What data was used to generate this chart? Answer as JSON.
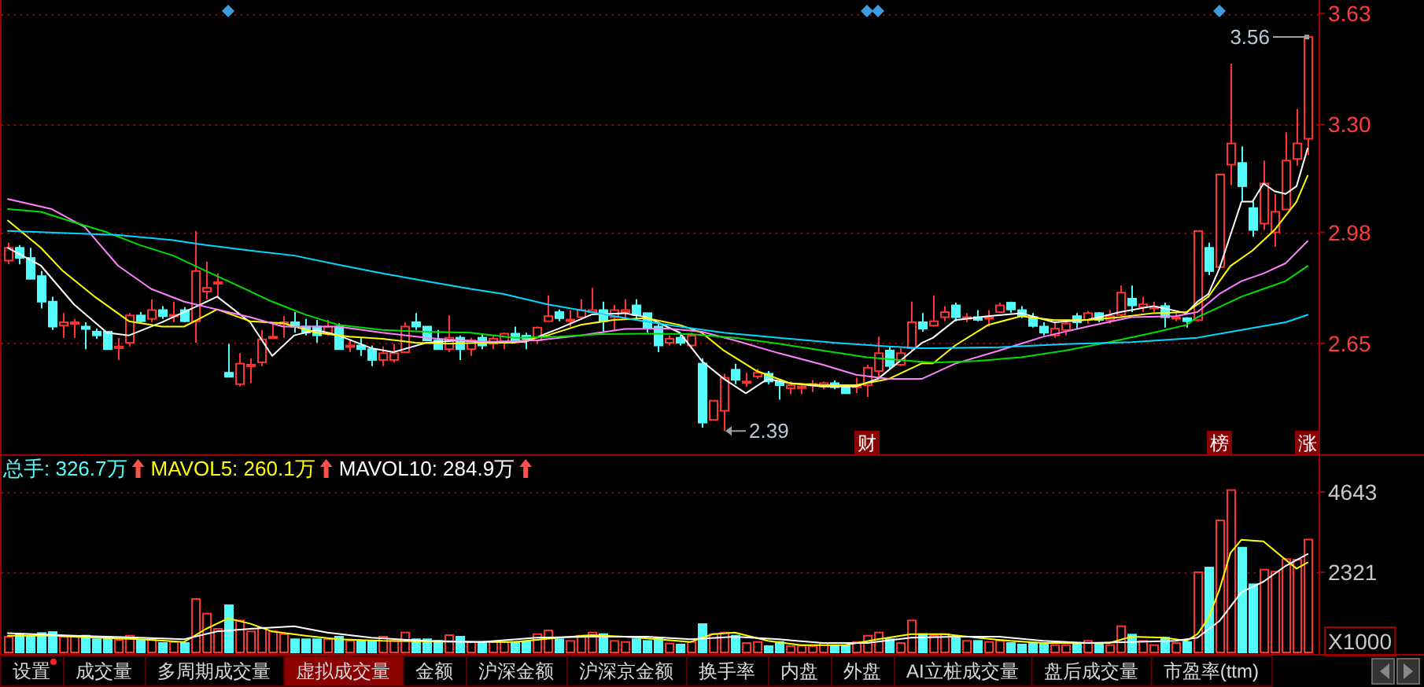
{
  "chart_data": [
    {
      "type": "candlestick",
      "categories": [
        null,
        null,
        null,
        null,
        null,
        null,
        null,
        null,
        null,
        null,
        null,
        null,
        null,
        null,
        null,
        null,
        null,
        null,
        null,
        null,
        null,
        null,
        null,
        null,
        null,
        null,
        null,
        null,
        null,
        null,
        null,
        null,
        null,
        null,
        null,
        null,
        null,
        null,
        null,
        null,
        null,
        null,
        null,
        null,
        null,
        null,
        null,
        null,
        null,
        null,
        null,
        null,
        null,
        null,
        null,
        null,
        null,
        null,
        null,
        null,
        null,
        null,
        null,
        null,
        null,
        null,
        null,
        null,
        null,
        null,
        null,
        null,
        null,
        null,
        null,
        null,
        null,
        null,
        null,
        null,
        null,
        null,
        null,
        null,
        null,
        null,
        null,
        null,
        null,
        null,
        null,
        null,
        null,
        null,
        null,
        null,
        null,
        null,
        null,
        null,
        null,
        null,
        null,
        null,
        null,
        null,
        null,
        null,
        null,
        null,
        null,
        null,
        null,
        null,
        null,
        null,
        null,
        null,
        null
      ],
      "ohlc": [
        [
          2.896,
          2.949,
          2.885,
          2.934
        ],
        [
          2.934,
          2.942,
          2.885,
          2.904
        ],
        [
          2.904,
          2.934,
          2.842,
          2.842
        ],
        [
          2.85,
          2.865,
          2.754,
          2.774
        ],
        [
          2.774,
          2.789,
          2.69,
          2.7
        ],
        [
          2.703,
          2.74,
          2.667,
          2.713
        ],
        [
          2.711,
          2.723,
          2.667,
          2.713
        ],
        [
          2.7,
          2.713,
          2.633,
          2.693
        ],
        [
          2.685,
          2.694,
          2.664,
          2.674
        ],
        [
          2.685,
          2.687,
          2.633,
          2.633
        ],
        [
          2.636,
          2.667,
          2.601,
          2.641
        ],
        [
          2.652,
          2.74,
          2.641,
          2.733
        ],
        [
          2.733,
          2.743,
          2.713,
          2.716
        ],
        [
          2.723,
          2.781,
          2.713,
          2.749
        ],
        [
          2.749,
          2.761,
          2.723,
          2.731
        ],
        [
          2.733,
          2.774,
          2.713,
          2.735
        ],
        [
          2.749,
          2.758,
          2.713,
          2.716
        ],
        [
          2.716,
          2.984,
          2.652,
          2.865
        ],
        [
          2.804,
          2.893,
          2.781,
          2.815
        ],
        [
          2.83,
          2.858,
          2.786,
          2.832
        ],
        [
          2.563,
          2.648,
          2.551,
          2.551
        ],
        [
          2.529,
          2.621,
          2.522,
          2.59
        ],
        [
          2.583,
          2.606,
          2.532,
          2.587
        ],
        [
          2.594,
          2.69,
          2.583,
          2.662
        ],
        [
          2.667,
          2.713,
          2.667,
          2.67
        ],
        [
          2.71,
          2.731,
          2.667,
          2.713
        ],
        [
          2.713,
          2.743,
          2.682,
          2.7
        ],
        [
          2.7,
          2.723,
          2.674,
          2.682
        ],
        [
          2.7,
          2.72,
          2.652,
          2.674
        ],
        [
          2.682,
          2.72,
          2.674,
          2.7
        ],
        [
          2.7,
          2.71,
          2.633,
          2.633
        ],
        [
          2.643,
          2.659,
          2.624,
          2.644
        ],
        [
          2.644,
          2.667,
          2.613,
          2.633
        ],
        [
          2.633,
          2.644,
          2.583,
          2.601
        ],
        [
          2.601,
          2.641,
          2.583,
          2.621
        ],
        [
          2.601,
          2.648,
          2.594,
          2.621
        ],
        [
          2.624,
          2.713,
          2.624,
          2.7
        ],
        [
          2.713,
          2.74,
          2.69,
          2.7
        ],
        [
          2.7,
          2.7,
          2.659,
          2.659
        ],
        [
          2.659,
          2.69,
          2.633,
          2.633
        ],
        [
          2.633,
          2.733,
          2.624,
          2.667
        ],
        [
          2.667,
          2.674,
          2.601,
          2.633
        ],
        [
          2.633,
          2.667,
          2.613,
          2.659
        ],
        [
          2.667,
          2.679,
          2.633,
          2.644
        ],
        [
          2.649,
          2.674,
          2.633,
          2.664
        ],
        [
          2.655,
          2.682,
          2.633,
          2.679
        ],
        [
          2.679,
          2.7,
          2.652,
          2.659
        ],
        [
          2.673,
          2.682,
          2.633,
          2.664
        ],
        [
          2.659,
          2.7,
          2.648,
          2.697
        ],
        [
          2.716,
          2.792,
          2.716,
          2.731
        ],
        [
          2.743,
          2.751,
          2.716,
          2.725
        ],
        [
          2.719,
          2.749,
          2.7,
          2.721
        ],
        [
          2.728,
          2.781,
          2.72,
          2.749
        ],
        [
          2.743,
          2.815,
          2.743,
          2.749
        ],
        [
          2.749,
          2.774,
          2.682,
          2.716
        ],
        [
          2.728,
          2.765,
          2.69,
          2.749
        ],
        [
          2.743,
          2.781,
          2.72,
          2.749
        ],
        [
          2.763,
          2.781,
          2.72,
          2.734
        ],
        [
          2.74,
          2.74,
          2.682,
          2.697
        ],
        [
          2.7,
          2.713,
          2.624,
          2.644
        ],
        [
          2.652,
          2.674,
          2.644,
          2.664
        ],
        [
          2.667,
          2.679,
          2.644,
          2.652
        ],
        [
          2.644,
          2.682,
          2.633,
          2.673
        ],
        [
          2.59,
          2.606,
          2.4,
          2.415
        ],
        [
          2.423,
          2.48,
          2.423,
          2.48
        ],
        [
          2.45,
          2.56,
          2.39,
          2.548
        ],
        [
          2.572,
          2.59,
          2.529,
          2.542
        ],
        [
          2.535,
          2.563,
          2.522,
          2.537
        ],
        [
          2.552,
          2.575,
          2.545,
          2.563
        ],
        [
          2.56,
          2.568,
          2.529,
          2.537
        ],
        [
          2.537,
          2.545,
          2.483,
          2.526
        ],
        [
          2.517,
          2.537,
          2.499,
          2.526
        ],
        [
          2.52,
          2.532,
          2.499,
          2.522
        ],
        [
          2.529,
          2.541,
          2.506,
          2.53
        ],
        [
          2.522,
          2.537,
          2.514,
          2.532
        ],
        [
          2.532,
          2.54,
          2.514,
          2.52
        ],
        [
          2.52,
          2.526,
          2.502,
          2.502
        ],
        [
          2.52,
          2.548,
          2.502,
          2.526
        ],
        [
          2.526,
          2.587,
          2.491,
          2.578
        ],
        [
          2.568,
          2.67,
          2.548,
          2.621
        ],
        [
          2.629,
          2.639,
          2.575,
          2.583
        ],
        [
          2.587,
          2.636,
          2.583,
          2.621
        ],
        [
          2.636,
          2.774,
          2.629,
          2.713
        ],
        [
          2.713,
          2.74,
          2.685,
          2.694
        ],
        [
          2.703,
          2.792,
          2.7,
          2.716
        ],
        [
          2.728,
          2.761,
          2.716,
          2.743
        ],
        [
          2.763,
          2.771,
          2.716,
          2.728
        ],
        [
          2.727,
          2.74,
          2.713,
          2.728
        ],
        [
          2.728,
          2.749,
          2.716,
          2.72
        ],
        [
          2.726,
          2.749,
          2.7,
          2.728
        ],
        [
          2.743,
          2.771,
          2.74,
          2.763
        ],
        [
          2.771,
          2.774,
          2.74,
          2.751
        ],
        [
          2.749,
          2.761,
          2.725,
          2.732
        ],
        [
          2.728,
          2.74,
          2.697,
          2.702
        ],
        [
          2.7,
          2.713,
          2.674,
          2.682
        ],
        [
          2.674,
          2.713,
          2.667,
          2.694
        ],
        [
          2.69,
          2.719,
          2.674,
          2.709
        ],
        [
          2.731,
          2.74,
          2.694,
          2.713
        ],
        [
          2.72,
          2.746,
          2.709,
          2.74
        ],
        [
          2.74,
          2.743,
          2.713,
          2.72
        ],
        [
          2.719,
          2.749,
          2.709,
          2.731
        ],
        [
          2.735,
          2.822,
          2.731,
          2.801
        ],
        [
          2.783,
          2.822,
          2.743,
          2.763
        ],
        [
          2.758,
          2.789,
          2.743,
          2.766
        ],
        [
          2.757,
          2.774,
          2.743,
          2.758
        ],
        [
          2.761,
          2.771,
          2.697,
          2.728
        ],
        [
          2.727,
          2.74,
          2.716,
          2.728
        ],
        [
          2.725,
          2.728,
          2.697,
          2.716
        ],
        [
          2.719,
          2.984,
          2.716,
          2.984
        ],
        [
          2.934,
          2.949,
          2.853,
          2.865
        ],
        [
          2.877,
          3.152,
          2.877,
          3.152
        ],
        [
          3.181,
          3.481,
          3.12,
          3.244
        ],
        [
          3.186,
          3.235,
          3.071,
          3.117
        ],
        [
          3.052,
          3.071,
          2.967,
          2.987
        ],
        [
          3.006,
          3.193,
          2.987,
          3.125
        ],
        [
          2.98,
          3.094,
          2.937,
          3.041
        ],
        [
          3.048,
          3.277,
          3.048,
          3.193
        ],
        [
          3.198,
          3.346,
          3.178,
          3.244
        ],
        [
          3.258,
          3.56,
          3.209,
          3.56
        ]
      ],
      "series": [
        {
          "type": "line",
          "color": "#ffffff",
          "values": [
            2.934,
            null,
            null,
            2.881,
            null,
            null,
            2.766,
            null,
            null,
            2.682,
            null,
            2.674,
            null,
            null,
            2.713,
            null,
            null,
            2.758,
            null,
            2.789,
            null,
            null,
            2.713,
            null,
            2.613,
            null,
            2.674,
            null,
            2.69,
            null,
            2.674,
            null,
            null,
            2.636,
            null,
            2.624,
            null,
            null,
            2.652,
            null,
            null,
            2.659,
            null,
            null,
            2.652,
            null,
            null,
            2.655,
            null,
            null,
            2.694,
            null,
            null,
            2.736,
            null,
            null,
            2.74,
            null,
            2.728,
            null,
            null,
            2.682,
            null,
            2.598,
            null,
            2.545,
            null,
            2.502,
            null,
            2.545,
            null,
            2.532,
            null,
            null,
            2.522,
            null,
            null,
            2.522,
            null,
            2.545,
            null,
            2.598,
            null,
            2.652,
            2.667,
            null,
            2.719,
            null,
            null,
            2.731,
            null,
            null,
            2.74,
            null,
            null,
            2.713,
            null,
            null,
            2.72,
            null,
            null,
            2.743,
            null,
            null,
            2.761,
            null,
            null,
            2.74,
            2.774,
            2.797,
            2.873,
            2.972,
            3.071,
            3.071,
            3.125,
            3.102,
            3.094,
            3.117,
            3.229
          ]
        },
        {
          "type": "line",
          "color": "#ffff00",
          "values": [
            3.015,
            null,
            null,
            2.934,
            null,
            2.865,
            null,
            null,
            2.786,
            null,
            null,
            2.716,
            null,
            null,
            2.7,
            null,
            2.7,
            null,
            null,
            2.751,
            null,
            null,
            2.716,
            null,
            null,
            2.71,
            null,
            null,
            2.682,
            null,
            null,
            2.67,
            null,
            null,
            2.664,
            null,
            null,
            2.652,
            null,
            null,
            2.649,
            null,
            null,
            2.652,
            null,
            null,
            2.652,
            null,
            null,
            2.674,
            null,
            null,
            2.705,
            null,
            null,
            2.72,
            null,
            null,
            2.725,
            null,
            null,
            2.705,
            null,
            2.682,
            null,
            2.629,
            null,
            null,
            2.568,
            null,
            null,
            2.532,
            null,
            null,
            2.526,
            null,
            null,
            2.526,
            null,
            null,
            2.545,
            null,
            null,
            2.591,
            2.591,
            null,
            2.644,
            null,
            null,
            2.705,
            null,
            null,
            2.731,
            null,
            null,
            2.719,
            null,
            null,
            2.72,
            null,
            null,
            2.728,
            null,
            null,
            2.74,
            null,
            null,
            2.743,
            null,
            2.789,
            null,
            2.88,
            null,
            2.926,
            null,
            2.987,
            null,
            3.071,
            3.148
          ]
        },
        {
          "type": "line",
          "color": "#ff80ff",
          "values": [
            3.079,
            null,
            null,
            null,
            3.049,
            null,
            null,
            2.995,
            null,
            null,
            2.881,
            null,
            null,
            2.812,
            null,
            null,
            2.774,
            null,
            null,
            2.751,
            null,
            null,
            2.728,
            null,
            null,
            2.7,
            null,
            null,
            null,
            null,
            2.7,
            null,
            null,
            null,
            2.682,
            null,
            null,
            null,
            2.667,
            null,
            null,
            2.659,
            null,
            null,
            2.655,
            null,
            null,
            null,
            2.659,
            null,
            null,
            null,
            2.674,
            null,
            null,
            null,
            2.693,
            null,
            null,
            null,
            2.694,
            null,
            null,
            2.685,
            null,
            null,
            2.659,
            null,
            null,
            null,
            2.621,
            null,
            null,
            null,
            2.587,
            null,
            null,
            2.557,
            null,
            null,
            2.545,
            null,
            null,
            2.545,
            null,
            null,
            2.59,
            null,
            null,
            null,
            2.629,
            null,
            null,
            null,
            2.67,
            null,
            null,
            null,
            2.7,
            null,
            null,
            null,
            2.728,
            null,
            null,
            null,
            2.731,
            null,
            2.743,
            null,
            2.797,
            null,
            2.835,
            null,
            2.858,
            null,
            2.888,
            null,
            2.954
          ]
        },
        {
          "type": "line",
          "color": "#00e000",
          "values": [
            3.049,
            null,
            null,
            3.041,
            null,
            null,
            3.01,
            null,
            null,
            2.98,
            null,
            null,
            2.942,
            null,
            null,
            2.911,
            null,
            null,
            2.865,
            null,
            null,
            2.82,
            null,
            null,
            2.774,
            null,
            null,
            2.736,
            null,
            null,
            2.705,
            null,
            null,
            null,
            2.69,
            null,
            null,
            null,
            2.685,
            null,
            null,
            null,
            2.682,
            null,
            null,
            null,
            2.667,
            null,
            null,
            null,
            2.67,
            null,
            null,
            null,
            2.678,
            null,
            null,
            null,
            2.679,
            null,
            null,
            null,
            2.678,
            null,
            null,
            null,
            2.667,
            null,
            null,
            null,
            2.649,
            null,
            null,
            null,
            2.629,
            null,
            null,
            null,
            2.609,
            null,
            null,
            null,
            2.598,
            null,
            2.593,
            null,
            null,
            null,
            2.598,
            null,
            null,
            null,
            2.609,
            null,
            null,
            null,
            2.629,
            null,
            null,
            null,
            2.654,
            null,
            null,
            null,
            2.682,
            null,
            null,
            2.705,
            2.728,
            null,
            2.758,
            null,
            2.789,
            null,
            2.812,
            null,
            2.835,
            null,
            2.88
          ]
        },
        {
          "type": "line",
          "color": "#00d8ff",
          "values": [
            2.984,
            null,
            null,
            null,
            null,
            null,
            null,
            null,
            null,
            null,
            2.972,
            null,
            null,
            null,
            null,
            2.957,
            null,
            null,
            2.942,
            null,
            null,
            null,
            2.926,
            null,
            null,
            null,
            2.911,
            null,
            null,
            null,
            2.884,
            null,
            null,
            null,
            2.858,
            null,
            null,
            null,
            2.835,
            null,
            null,
            null,
            2.812,
            null,
            null,
            2.797,
            null,
            null,
            null,
            2.766,
            null,
            null,
            null,
            2.743,
            null,
            null,
            null,
            2.72,
            null,
            null,
            null,
            2.7,
            null,
            null,
            null,
            2.682,
            null,
            null,
            null,
            null,
            2.667,
            null,
            null,
            null,
            null,
            2.652,
            null,
            null,
            null,
            null,
            2.641,
            null,
            null,
            2.636,
            2.636,
            null,
            null,
            null,
            null,
            null,
            2.639,
            null,
            null,
            null,
            null,
            null,
            2.648,
            null,
            null,
            null,
            null,
            null,
            2.654,
            null,
            null,
            null,
            null,
            null,
            2.667,
            null,
            null,
            null,
            2.69,
            null,
            null,
            null,
            2.713,
            null,
            2.735
          ]
        }
      ],
      "ylim": [
        2.33,
        3.67
      ],
      "yticks": [
        {
          "value": 2.65,
          "label": "2.65"
        },
        {
          "value": 2.98,
          "label": "2.98"
        },
        {
          "value": 3.3,
          "label": "3.30"
        },
        {
          "value": 3.63,
          "label": "3.63"
        }
      ],
      "grid": "y",
      "tick_labels": "y",
      "annotations": [
        "3.56",
        "2.39",
        "财",
        "榜",
        "涨"
      ]
    },
    {
      "type": "bar",
      "categories": [
        null,
        null,
        null,
        null,
        null,
        null,
        null,
        null,
        null,
        null,
        null,
        null,
        null,
        null,
        null,
        null,
        null,
        null,
        null,
        null,
        null,
        null,
        null,
        null,
        null,
        null,
        null,
        null,
        null,
        null,
        null,
        null,
        null,
        null,
        null,
        null,
        null,
        null,
        null,
        null,
        null,
        null,
        null,
        null,
        null,
        null,
        null,
        null,
        null,
        null,
        null,
        null,
        null,
        null,
        null,
        null,
        null,
        null,
        null,
        null,
        null,
        null,
        null,
        null,
        null,
        null,
        null,
        null,
        null,
        null,
        null,
        null,
        null,
        null,
        null,
        null,
        null,
        null,
        null,
        null,
        null,
        null,
        null,
        null,
        null,
        null,
        null,
        null,
        null,
        null,
        null,
        null,
        null,
        null,
        null,
        null,
        null,
        null,
        null,
        null,
        null,
        null,
        null,
        null,
        null,
        null,
        null,
        null,
        null,
        null,
        null,
        null,
        null,
        null,
        null,
        null,
        null,
        null,
        null
      ],
      "series": [
        {
          "type": "bar",
          "colors": [
            "#ff3232",
            "#54fcfc",
            "#54fcfc",
            "#54fcfc",
            "#54fcfc",
            "#ff3232",
            "#ff3232",
            "#54fcfc",
            "#54fcfc",
            "#54fcfc",
            "#ff3232",
            "#ff3232",
            "#54fcfc",
            "#ff3232",
            "#54fcfc",
            "#ff3232",
            "#54fcfc",
            "#ff3232",
            "#ff3232",
            "#ff3232",
            "#54fcfc",
            "#ff3232",
            "#ff3232",
            "#ff3232",
            "#ff3232",
            "#ff3232",
            "#54fcfc",
            "#54fcfc",
            "#54fcfc",
            "#ff3232",
            "#54fcfc",
            "#ff3232",
            "#54fcfc",
            "#54fcfc",
            "#ff3232",
            "#ff3232",
            "#ff3232",
            "#54fcfc",
            "#54fcfc",
            "#54fcfc",
            "#ff3232",
            "#54fcfc",
            "#ff3232",
            "#54fcfc",
            "#ff3232",
            "#ff3232",
            "#54fcfc",
            "#54fcfc",
            "#ff3232",
            "#ff3232",
            "#54fcfc",
            "#ff3232",
            "#ff3232",
            "#ff3232",
            "#54fcfc",
            "#ff3232",
            "#ff3232",
            "#54fcfc",
            "#54fcfc",
            "#54fcfc",
            "#ff3232",
            "#54fcfc",
            "#ff3232",
            "#54fcfc",
            "#ff3232",
            "#ff3232",
            "#54fcfc",
            "#ff3232",
            "#ff3232",
            "#54fcfc",
            "#54fcfc",
            "#ff3232",
            "#ff3232",
            "#ff3232",
            "#ff3232",
            "#54fcfc",
            "#54fcfc",
            "#ff3232",
            "#ff3232",
            "#ff3232",
            "#54fcfc",
            "#ff3232",
            "#ff3232",
            "#54fcfc",
            "#ff3232",
            "#ff3232",
            "#54fcfc",
            "#ff3232",
            "#54fcfc",
            "#ff3232",
            "#ff3232",
            "#54fcfc",
            "#54fcfc",
            "#54fcfc",
            "#54fcfc",
            "#ff3232",
            "#ff3232",
            "#54fcfc",
            "#ff3232",
            "#54fcfc",
            "#ff3232",
            "#ff3232",
            "#54fcfc",
            "#ff3232",
            "#ff3232",
            "#54fcfc",
            "#ff3232",
            "#54fcfc",
            "#ff3232",
            "#54fcfc",
            "#ff3232",
            "#ff3232",
            "#54fcfc",
            "#54fcfc",
            "#ff3232",
            "#ff3232",
            "#ff3232",
            "#ff3232",
            "#ff3232"
          ],
          "values": [
            455,
            530,
            485,
            560,
            590,
            455,
            455,
            485,
            380,
            410,
            364,
            485,
            364,
            380,
            273,
            303,
            273,
            1547,
            1123,
            683,
            1365,
            925,
            607,
            713,
            607,
            530,
            380,
            380,
            380,
            380,
            455,
            334,
            334,
            334,
            455,
            334,
            576,
            380,
            380,
            334,
            500,
            455,
            303,
            303,
            303,
            303,
            303,
            303,
            530,
            637,
            380,
            334,
            485,
            576,
            530,
            334,
            303,
            380,
            334,
            425,
            258,
            228,
            303,
            819,
            530,
            576,
            485,
            273,
            303,
            182,
            303,
            182,
            197,
            182,
            273,
            182,
            197,
            303,
            485,
            576,
            380,
            273,
            925,
            530,
            485,
            530,
            425,
            334,
            334,
            303,
            334,
            273,
            228,
            273,
            273,
            212,
            212,
            243,
            334,
            243,
            212,
            758,
            516,
            334,
            212,
            425,
            273,
            303,
            2321,
            2457,
            3822,
            4700,
            3033,
            1972,
            2397,
            2336,
            2700,
            2685,
            3267
          ]
        },
        {
          "type": "line",
          "color": "#ffff00",
          "values": [
            485,
            null,
            null,
            null,
            485,
            null,
            null,
            null,
            425,
            null,
            null,
            null,
            380,
            null,
            null,
            null,
            303,
            null,
            683,
            null,
            986,
            null,
            834,
            null,
            607,
            null,
            null,
            485,
            null,
            null,
            380,
            null,
            null,
            null,
            334,
            null,
            null,
            null,
            null,
            null,
            null,
            null,
            303,
            null,
            null,
            null,
            303,
            null,
            null,
            null,
            425,
            null,
            null,
            500,
            null,
            null,
            455,
            null,
            null,
            380,
            null,
            null,
            303,
            null,
            530,
            null,
            576,
            null,
            null,
            334,
            null,
            null,
            212,
            null,
            null,
            null,
            212,
            null,
            null,
            380,
            null,
            null,
            530,
            null,
            null,
            530,
            null,
            null,
            425,
            null,
            null,
            334,
            null,
            null,
            273,
            null,
            null,
            273,
            null,
            null,
            273,
            null,
            455,
            null,
            null,
            425,
            null,
            334,
            530,
            986,
            1820,
            2882,
            3261,
            null,
            3215,
            null,
            2685,
            2427,
            2601
          ]
        },
        {
          "type": "line",
          "color": "#ffffff",
          "values": [
            560,
            null,
            null,
            null,
            null,
            null,
            485,
            null,
            null,
            null,
            null,
            null,
            425,
            null,
            null,
            null,
            380,
            null,
            null,
            607,
            null,
            null,
            683,
            null,
            null,
            null,
            758,
            null,
            null,
            576,
            null,
            null,
            null,
            425,
            null,
            null,
            null,
            null,
            334,
            null,
            null,
            null,
            null,
            303,
            null,
            null,
            null,
            null,
            425,
            null,
            null,
            null,
            null,
            455,
            null,
            null,
            null,
            null,
            455,
            null,
            null,
            null,
            380,
            null,
            null,
            null,
            455,
            null,
            null,
            null,
            380,
            null,
            null,
            null,
            273,
            null,
            null,
            null,
            273,
            null,
            null,
            null,
            425,
            null,
            null,
            null,
            455,
            null,
            null,
            null,
            455,
            null,
            null,
            null,
            334,
            null,
            null,
            null,
            273,
            null,
            null,
            null,
            303,
            null,
            null,
            null,
            334,
            null,
            425,
            null,
            910,
            null,
            1744,
            null,
            2048,
            null,
            2503,
            null,
            2849
          ]
        }
      ],
      "ylim": [
        0,
        5690
      ],
      "yticks": [
        2321,
        4643
      ],
      "ylabel": "X1000",
      "grid": "y",
      "tick_labels": "y",
      "annotations": [
        "总手: 326.7万",
        "MAVOL5: 260.1万",
        "MAVOL10: 284.9万",
        "设置",
        "成交量",
        "多周期成交量",
        "虚拟成交量",
        "金额",
        "沪深金额",
        "沪深京金额",
        "换手率",
        "内盘",
        "外盘",
        "AI立桩成交量",
        "盘后成交量",
        "市盈率(ttm)"
      ]
    }
  ]
}
